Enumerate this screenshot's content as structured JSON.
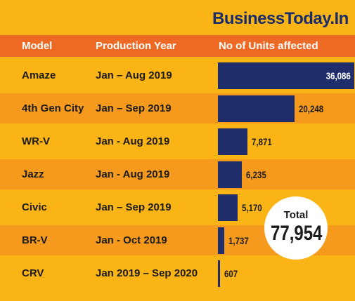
{
  "brand": "BusinessToday.In",
  "headers": {
    "model": "Model",
    "year": "Production Year",
    "units": "No of Units affected"
  },
  "chart_data": {
    "type": "bar",
    "categories": [
      "Amaze",
      "4th Gen City",
      "WR-V",
      "Jazz",
      "Civic",
      "BR-V",
      "CRV"
    ],
    "production_years": [
      "Jan – Aug 2019",
      "Jan – Sep 2019",
      "Jan - Aug 2019",
      "Jan - Aug 2019",
      "Jan – Sep 2019",
      "Jan - Oct 2019",
      "Jan 2019 – Sep 2020"
    ],
    "values": [
      36086,
      20248,
      7871,
      6235,
      5170,
      1737,
      607
    ],
    "value_labels": [
      "36,086",
      "20,248",
      "7,871",
      "6,235",
      "5,170",
      "1,737",
      "607"
    ]
  },
  "total": {
    "label": "Total",
    "value": "77,954"
  },
  "colors": {
    "background": "#fbb416",
    "alt_row": "#f69a1e",
    "header": "#ee6a24",
    "bar": "#1f2e6b",
    "brand": "#1a2d6b"
  }
}
